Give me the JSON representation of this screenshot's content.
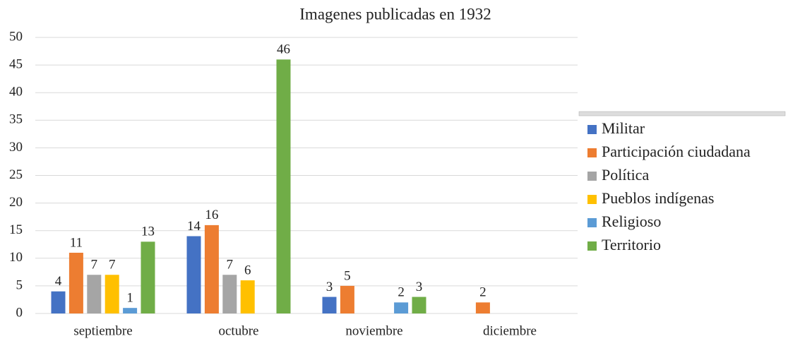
{
  "chart_data": {
    "type": "bar",
    "title": "Imagenes publicadas en  1932",
    "categories": [
      "septiembre",
      "octubre",
      "noviembre",
      "diciembre"
    ],
    "series": [
      {
        "name": "Militar",
        "color": "#4472c4",
        "values": [
          4,
          14,
          3,
          null
        ]
      },
      {
        "name": "Participación ciudadana",
        "color": "#ed7d31",
        "values": [
          11,
          16,
          5,
          2
        ]
      },
      {
        "name": "Política",
        "color": "#a5a5a5",
        "values": [
          7,
          7,
          null,
          null
        ]
      },
      {
        "name": "Pueblos indígenas",
        "color": "#ffc000",
        "values": [
          7,
          6,
          null,
          null
        ]
      },
      {
        "name": "Religioso",
        "color": "#5b9bd5",
        "values": [
          1,
          null,
          2,
          null
        ]
      },
      {
        "name": "Territorio",
        "color": "#70ad47",
        "values": [
          13,
          46,
          3,
          null
        ]
      }
    ],
    "ylim": [
      0,
      50
    ],
    "yticks": [
      0,
      5,
      10,
      15,
      20,
      25,
      30,
      35,
      40,
      45,
      50
    ],
    "grid": true,
    "legend": "right"
  }
}
